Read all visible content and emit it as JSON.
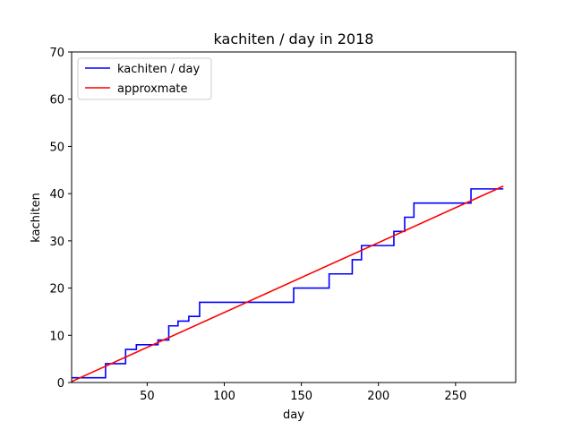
{
  "chart_data": {
    "type": "line",
    "title": "kachiten / day in 2018",
    "xlabel": "day",
    "ylabel": "kachiten",
    "xlim": [
      1,
      289
    ],
    "ylim": [
      0,
      70
    ],
    "xticks": [
      50,
      100,
      150,
      200,
      250
    ],
    "yticks": [
      0,
      10,
      20,
      30,
      40,
      50,
      60,
      70
    ],
    "grid": false,
    "legend_position": "upper-left",
    "series": [
      {
        "name": "kachiten / day",
        "color": "#0000ff",
        "style": "step",
        "points": [
          [
            1,
            1
          ],
          [
            23,
            1
          ],
          [
            23,
            4
          ],
          [
            36,
            4
          ],
          [
            36,
            7
          ],
          [
            43,
            7
          ],
          [
            43,
            8
          ],
          [
            57,
            8
          ],
          [
            57,
            9
          ],
          [
            64,
            9
          ],
          [
            64,
            12
          ],
          [
            70,
            12
          ],
          [
            70,
            13
          ],
          [
            77,
            13
          ],
          [
            77,
            14
          ],
          [
            84,
            14
          ],
          [
            84,
            17
          ],
          [
            145,
            17
          ],
          [
            145,
            20
          ],
          [
            168,
            20
          ],
          [
            168,
            23
          ],
          [
            183,
            23
          ],
          [
            183,
            26
          ],
          [
            189,
            26
          ],
          [
            189,
            29
          ],
          [
            210,
            29
          ],
          [
            210,
            32
          ],
          [
            217,
            32
          ],
          [
            217,
            35
          ],
          [
            223,
            35
          ],
          [
            223,
            38
          ],
          [
            260,
            38
          ],
          [
            260,
            41
          ],
          [
            281,
            41
          ]
        ]
      },
      {
        "name": "approxmate",
        "color": "#ff0000",
        "style": "line",
        "points": [
          [
            1,
            0.2
          ],
          [
            281,
            41.6
          ]
        ]
      }
    ]
  }
}
